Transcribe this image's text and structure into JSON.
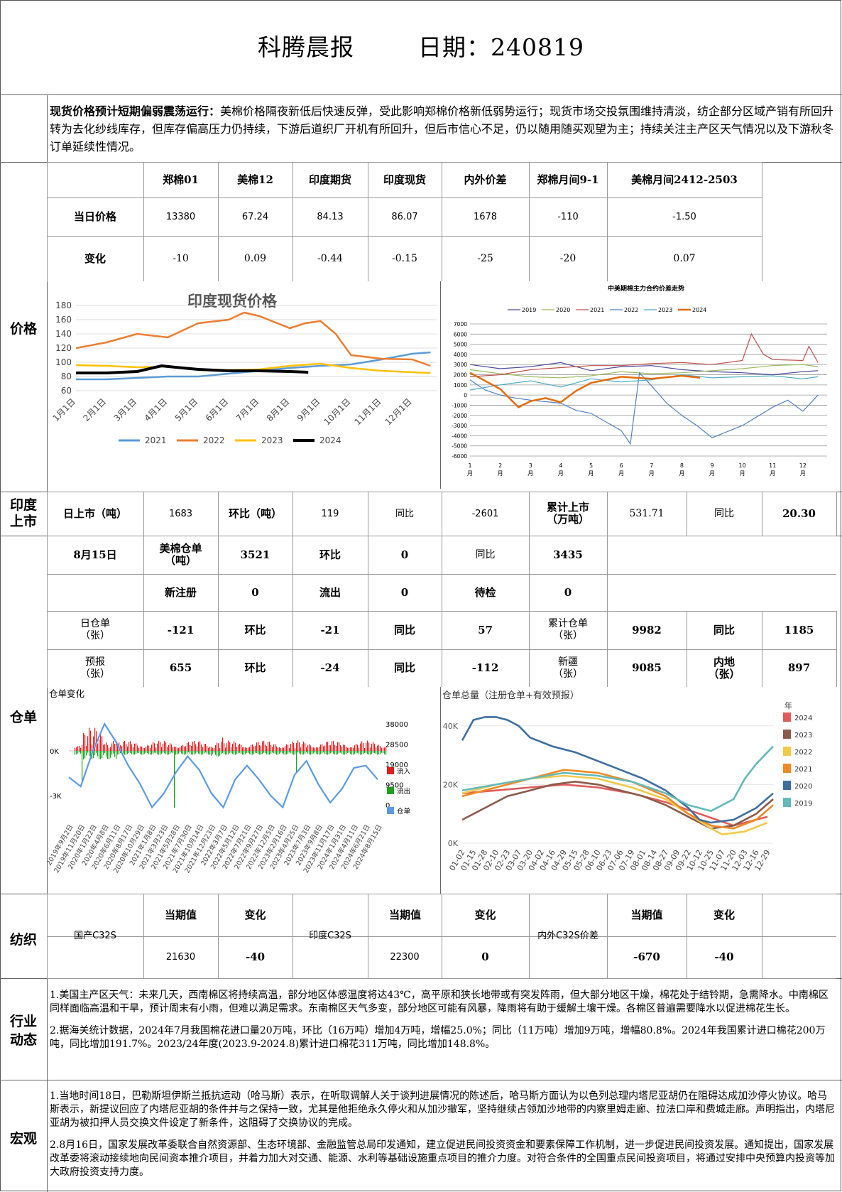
{
  "header": {
    "title": "科腾晨报",
    "date_label": "日期：240819"
  },
  "summary": {
    "lead": "现货价格预计短期偏弱震荡运行：",
    "text": "美棉价格隔夜新低后快速反弹，受此影响郑棉价格新低弱势运行；现货市场交投氛围维持清淡，纺企部分区域产销有所回升转为去化纱线库存，但库存偏高压力仍持续，下游后道织厂开机有所回升，但后市信心不足，仍以随用随买观望为主；持续关注主产区天气情况以及下游秋冬订单延续性情况。"
  },
  "sections": {
    "price": "价格",
    "india": "印度\n上市",
    "warehouse": "仓单",
    "yarn": "纺织",
    "industry": "行业\n动态",
    "macro": "宏观"
  },
  "price_table": {
    "headers": [
      "郑棉01",
      "美棉12",
      "印度期货",
      "印度现货",
      "内外价差",
      "郑棉月间9-1",
      "美棉月间2412-2503"
    ],
    "row1_label": "当日价格",
    "row1": [
      "13380",
      "67.24",
      "84.13",
      "86.07",
      "1678",
      "-110",
      "-1.50"
    ],
    "row2_label": "变化",
    "row2": [
      "-10",
      "0.09",
      "-0.44",
      "-0.15",
      "-25",
      "-20",
      "0.07"
    ]
  },
  "india_row": {
    "c1": "日上市（吨）",
    "c2": "1683",
    "c3": "环比（吨）",
    "c4": "119",
    "c5": "同比",
    "c6": "-2601",
    "c7": "累计上市\n（万吨）",
    "c8": "531.71",
    "c9": "同比",
    "c10": "20.30"
  },
  "warehouse_rows": {
    "r1": [
      "8月15日",
      "美棉仓单\n（吨）",
      "3521",
      "环比",
      "0",
      "同比",
      "3435"
    ],
    "r2": [
      "新注册",
      "0",
      "流出",
      "0",
      "待检",
      "0"
    ],
    "r3": [
      "日仓单\n（张）",
      "-121",
      "环比",
      "-21",
      "同比",
      "57",
      "累计仓单\n（张）",
      "9982",
      "同比",
      "1185"
    ],
    "r4": [
      "预报\n（张）",
      "655",
      "环比",
      "-24",
      "同比",
      "-112",
      "新疆\n（张）",
      "9085",
      "内地\n（张）",
      "897"
    ]
  },
  "yarn": {
    "cur": "当期值",
    "chg": "变化",
    "domestic_label": "国产C32S",
    "domestic_val": "21630",
    "domestic_chg": "-40",
    "india_label": "印度C32S",
    "india_val": "22300",
    "india_chg": "0",
    "spread_label": "内外C32S价差",
    "spread_val": "-670",
    "spread_chg": "-40"
  },
  "industry": [
    "1.美国主产区天气：未来几天，西南棉区将持续高温，部分地区体感温度将达43℃，高平原和狭长地带或有突发阵雨，但大部分地区干燥，棉花处于结铃期，急需降水。中南棉区同样面临高温和干旱，预计周末有小雨，但难以满足需求。东南棉区天气多变，部分地区可能有风暴，降雨将有助于缓解土壤干燥。各棉区普遍需要降水以促进棉花生长。",
    "2.据海关统计数据，2024年7月我国棉花进口量20万吨，环比（16万吨）增加4万吨，增幅25.0%；同比（11万吨）增加9万吨，增幅80.8%。2024年我国累计进口棉花200万吨，同比增加191.7%。2023/24年度(2023.9-2024.8)累计进口棉花311万吨，同比增加148.8%。"
  ],
  "macro": [
    "1.当地时间18日，巴勒斯坦伊斯兰抵抗运动（哈马斯）表示，在听取调解人关于谈判进展情况的陈述后，哈马斯方面认为以色列总理内塔尼亚胡仍在阻碍达成加沙停火协议。哈马斯表示，新提议回应了内塔尼亚胡的条件并与之保持一致，尤其是他拒绝永久停火和从加沙撤军，坚持继续占领加沙地带的内察里姆走廊、拉法口岸和费城走廊。声明指出，内塔尼亚胡为被扣押人员交换文件设定了新条件，这阻碍了交换协议的完成。",
    "2.8月16日，国家发展改革委联合自然资源部、生态环境部、金融监管总局印发通知，建立促进民间投资资金和要素保障工作机制，进一步促进民间投资发展。通知提出，国家发展改革委将滚动接续地向民间资本推介项目，并着力加大对交通、能源、水利等基础设施重点项目的推介力度。对符合条件的全国重点民间投资项目，将通过安排中央预算内投资等加大政府投资支持力度。"
  ],
  "chart_data": [
    {
      "type": "line",
      "title": "印度现货价格",
      "x_ticks": [
        "1月1日",
        "2月1日",
        "3月1日",
        "4月1日",
        "5月1日",
        "6月1日",
        "7月1日",
        "8月1日",
        "9月1日",
        "10月1日",
        "11月1日",
        "12月1日"
      ],
      "ylim": [
        60,
        180
      ],
      "y_ticks": [
        "60",
        "80",
        "100",
        "120",
        "140",
        "160",
        "180"
      ],
      "legend": "bottom",
      "series": [
        {
          "name": "2021",
          "color": "#5b9bd5",
          "x": [
            0,
            1,
            2,
            3,
            4,
            5,
            6,
            7,
            8,
            9,
            10,
            11,
            11.6
          ],
          "values": [
            76,
            76,
            78,
            80,
            80,
            84,
            88,
            92,
            95,
            97,
            104,
            112,
            114
          ]
        },
        {
          "name": "2022",
          "color": "#ed7d31",
          "x": [
            0,
            1,
            2,
            3,
            4,
            5,
            5.5,
            6,
            7,
            7.5,
            8,
            8.5,
            9,
            10,
            11,
            11.6
          ],
          "values": [
            120,
            128,
            140,
            135,
            155,
            160,
            170,
            165,
            148,
            155,
            158,
            140,
            110,
            105,
            104,
            95
          ]
        },
        {
          "name": "2023",
          "color": "#ffc000",
          "x": [
            0,
            1,
            2,
            3,
            4,
            5,
            6,
            7,
            8,
            9,
            10,
            11,
            11.6
          ],
          "values": [
            96,
            95,
            93,
            94,
            90,
            89,
            90,
            95,
            98,
            92,
            88,
            86,
            85
          ]
        },
        {
          "name": "2024",
          "color": "#000000",
          "x": [
            0,
            1,
            2,
            2.8,
            3.5,
            4,
            5,
            6,
            7,
            7.6
          ],
          "values": [
            85,
            85,
            87,
            95,
            92,
            90,
            88,
            88,
            87,
            86
          ]
        }
      ]
    },
    {
      "type": "line",
      "title": "中美期棉主力合约价差走势",
      "x_ticks": [
        "1\n月",
        "2\n月",
        "3\n月",
        "4\n月",
        "5\n月",
        "6\n月",
        "7\n月",
        "8\n月",
        "9\n月",
        "10\n月",
        "11\n月",
        "12\n月"
      ],
      "ylim": [
        -6000,
        7000
      ],
      "y_ticks": [
        "-6000",
        "-5000",
        "-4000",
        "-3000",
        "-2000",
        "-1000",
        "0",
        "1000",
        "2000",
        "3000",
        "4000",
        "5000",
        "6000",
        "7000"
      ],
      "legend": "top",
      "series": [
        {
          "name": "2019",
          "color": "#4e4a9e",
          "x": [
            0,
            1,
            2,
            3,
            4,
            5,
            6,
            7,
            8,
            9,
            10,
            11,
            11.5
          ],
          "values": [
            3000,
            2600,
            2800,
            3200,
            2400,
            2800,
            2900,
            2500,
            2300,
            2200,
            2000,
            2300,
            2400
          ]
        },
        {
          "name": "2020",
          "color": "#9bbb59",
          "x": [
            0,
            1,
            2,
            3,
            4,
            5,
            6,
            7,
            8,
            9,
            10,
            11,
            11.5
          ],
          "values": [
            2500,
            2100,
            1800,
            1700,
            1900,
            2300,
            2100,
            2200,
            2400,
            2600,
            2900,
            3000,
            2800
          ]
        },
        {
          "name": "2021",
          "color": "#c0504d",
          "x": [
            0,
            1,
            2,
            3,
            4,
            5,
            6,
            7,
            8,
            9,
            9.3,
            9.7,
            10,
            11,
            11.2,
            11.5
          ],
          "values": [
            1800,
            2000,
            2500,
            2700,
            2900,
            2900,
            3100,
            3200,
            3000,
            3400,
            6000,
            4000,
            3500,
            3400,
            4800,
            3200
          ]
        },
        {
          "name": "2022",
          "color": "#4f81bd",
          "x": [
            0,
            0.5,
            1,
            1.5,
            2,
            3,
            3.5,
            4,
            5,
            5.3,
            5.6,
            6,
            6.5,
            7,
            7.5,
            8,
            9,
            10,
            10.5,
            11,
            11.5
          ],
          "values": [
            1500,
            500,
            0,
            -300,
            -500,
            -800,
            -1500,
            -1800,
            -3500,
            -4800,
            2200,
            900,
            -800,
            -2000,
            -3000,
            -4200,
            -3000,
            -1200,
            -500,
            -1600,
            0
          ]
        },
        {
          "name": "2023",
          "color": "#4bacc6",
          "x": [
            0,
            1,
            2,
            3,
            4,
            5,
            6,
            7,
            8,
            9,
            10,
            11,
            11.5
          ],
          "values": [
            500,
            1000,
            1400,
            800,
            1600,
            1300,
            1500,
            2000,
            1700,
            1800,
            1900,
            1600,
            1800
          ]
        },
        {
          "name": "2024",
          "color": "#e46c0a",
          "x": [
            0,
            1,
            1.6,
            2,
            2.5,
            3,
            3.5,
            4,
            5,
            6,
            7,
            7.6
          ],
          "values": [
            2200,
            600,
            -1200,
            -600,
            -300,
            -700,
            400,
            1200,
            1800,
            1600,
            1900,
            1700
          ]
        }
      ]
    },
    {
      "type": "bar",
      "title": "仓单变化",
      "y_left_ticks": [
        "0K",
        "-3K"
      ],
      "y_right_ticks": [
        "38000",
        "28500",
        "19000",
        "9500",
        "0"
      ],
      "legend": "right",
      "legend_items": [
        "流入",
        "流出",
        "仓单"
      ],
      "colors": {
        "inflow": "#e01e1e",
        "outflow": "#1fa21f",
        "warehouse": "#5b9be5"
      },
      "x_ticks": [
        "2019年9月2日",
        "2019年11月20日",
        "2020年1月22日",
        "2020年4月8日",
        "2020年6月11日",
        "2020年8月17日",
        "2020年10月29日",
        "2021年1月8日",
        "2021年3月23日",
        "2021年5月28日",
        "2021年7月30日",
        "2021年10月14日",
        "2021年12月23日",
        "2022年3月7日",
        "2022年5月12日",
        "2022年7月21日",
        "2022年9月27日",
        "2022年12月5日",
        "2023年2月16日",
        "2023年4月25日",
        "2023年7月3日",
        "2023年9月8日",
        "2023年11月17日",
        "2024年1月31日",
        "2024年4月11日",
        "2024年6月21日",
        "2024年8月15日"
      ],
      "warehouse_series": [
        15000,
        11000,
        26000,
        38000,
        30000,
        20000,
        12000,
        2000,
        8000,
        17000,
        24000,
        18000,
        8000,
        2000,
        14000,
        20000,
        14000,
        7000,
        2000,
        16000,
        22000,
        12000,
        4000,
        10000,
        19000,
        20000,
        14000
      ]
    },
    {
      "type": "line",
      "title": "仓单总量（注册仓单+有效预报）",
      "y_ticks": [
        "40K",
        "20K",
        "0K"
      ],
      "legend_title": "年",
      "x_ticks": [
        "01-02",
        "01-15",
        "01-28",
        "02-10",
        "02-23",
        "03-07",
        "03-20",
        "04-02",
        "04-16",
        "04-29",
        "05-15",
        "05-28",
        "06-10",
        "06-23",
        "07-06",
        "07-19",
        "08-01",
        "08-14",
        "08-27",
        "09-09",
        "09-22",
        "10-12",
        "10-25",
        "11-07",
        "11-20",
        "12-03",
        "12-16",
        "12-29"
      ],
      "ylim": [
        0,
        46000
      ],
      "series": [
        {
          "name": "2024",
          "color": "#e05b5b",
          "x": [
            0,
            3,
            6,
            9,
            12,
            15,
            18,
            21,
            24,
            27
          ],
          "values": [
            17000,
            18000,
            19000,
            20000,
            19000,
            17000,
            14000,
            10000,
            6000,
            9000
          ]
        },
        {
          "name": "2023",
          "color": "#8c5a4b",
          "x": [
            0,
            2,
            4,
            6,
            8,
            10,
            12,
            14,
            16,
            18,
            20,
            22,
            24,
            26,
            27.5
          ],
          "values": [
            8000,
            12000,
            16000,
            18000,
            20000,
            21000,
            20000,
            18000,
            16000,
            13000,
            9000,
            5000,
            6000,
            10000,
            15000
          ]
        },
        {
          "name": "2022",
          "color": "#f0c94a",
          "x": [
            0,
            3,
            6,
            9,
            12,
            15,
            18,
            20,
            22,
            23,
            25,
            27
          ],
          "values": [
            17000,
            20000,
            22000,
            23000,
            22000,
            19000,
            15000,
            10000,
            5000,
            3000,
            4000,
            7000
          ]
        },
        {
          "name": "2021",
          "color": "#f08a24",
          "x": [
            0,
            3,
            6,
            9,
            12,
            15,
            18,
            20,
            22,
            24,
            26,
            27.5
          ],
          "values": [
            16000,
            19000,
            22000,
            25000,
            24000,
            21000,
            16000,
            10000,
            6000,
            5000,
            8000,
            13000
          ]
        },
        {
          "name": "2020",
          "color": "#3e6ea0",
          "x": [
            0,
            1,
            2,
            3,
            4,
            5,
            6,
            8,
            10,
            12,
            14,
            16,
            18,
            20,
            21,
            22,
            24,
            26,
            27.5
          ],
          "values": [
            35000,
            42000,
            43000,
            43000,
            42000,
            40000,
            36000,
            33000,
            31000,
            28000,
            25000,
            22000,
            18000,
            12000,
            8000,
            7000,
            8000,
            12000,
            17000
          ]
        },
        {
          "name": "2019",
          "color": "#64b9b9",
          "x": [
            0,
            3,
            6,
            9,
            12,
            15,
            18,
            20,
            22,
            24,
            25,
            26,
            27.5
          ],
          "values": [
            18000,
            20000,
            22000,
            24000,
            23000,
            21000,
            17000,
            13000,
            11000,
            15000,
            22000,
            27000,
            33000
          ]
        }
      ]
    }
  ]
}
